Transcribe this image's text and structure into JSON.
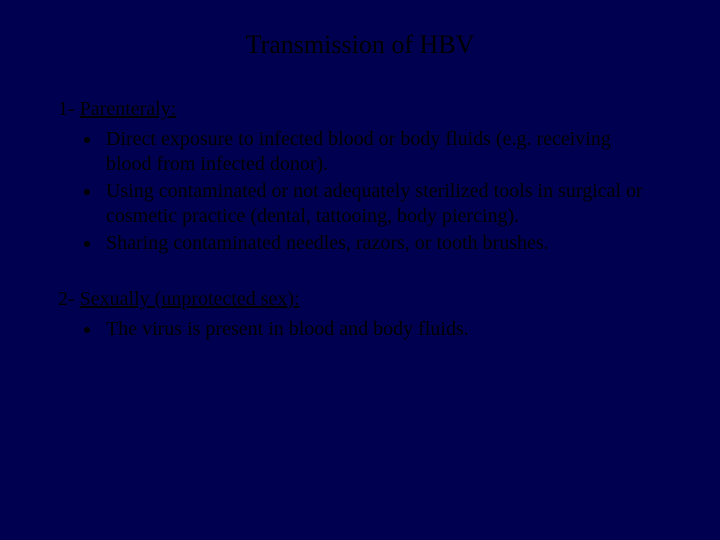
{
  "colors": {
    "background": "#000050",
    "text": "#000000"
  },
  "typography": {
    "font_family": "Times New Roman, serif",
    "title_fontsize": 26,
    "body_fontsize": 20
  },
  "slide": {
    "title": "Transmission of HBV",
    "sections": [
      {
        "number_prefix": "1- ",
        "heading": "Parenteraly:",
        "heading_trailing_space": " ",
        "bullets": [
          "Direct exposure to infected blood or body fluids (e.g. receiving blood from infected donor).",
          "Using contaminated or not adequately sterilized tools in surgical or cosmetic practice (dental, tattooing, body piercing).",
          "Sharing contaminated needles, razors, or tooth brushes."
        ]
      },
      {
        "number_prefix": "2- ",
        "heading": "Sexually (unprotected sex):",
        "bullets": [
          "The virus is present in blood and body fluids."
        ]
      }
    ]
  }
}
